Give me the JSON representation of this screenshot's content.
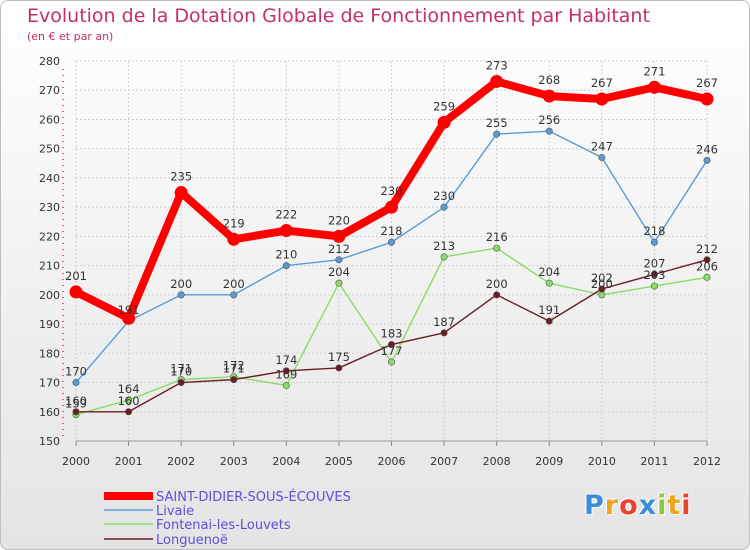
{
  "header": {
    "title": "Evolution de la Dotation Globale de Fonctionnement par Habitant",
    "subtitle": "(en € et par an)"
  },
  "logo": {
    "text": "Proxiti",
    "letters": [
      {
        "ch": "P",
        "color": "#3a8dd8"
      },
      {
        "ch": "r",
        "color": "#f2a21d"
      },
      {
        "ch": "o",
        "color": "#e8432f"
      },
      {
        "ch": "x",
        "color": "#3a8dd8"
      },
      {
        "ch": "i",
        "color": "#8dc63f"
      },
      {
        "ch": "t",
        "color": "#f2a21d"
      },
      {
        "ch": "i",
        "color": "#e8432f"
      }
    ]
  },
  "chart_data": {
    "type": "line",
    "title": "Evolution de la Dotation Globale de Fonctionnement par Habitant",
    "subtitle": "(en € et par an)",
    "x": [
      2000,
      2001,
      2002,
      2003,
      2004,
      2005,
      2006,
      2007,
      2008,
      2009,
      2010,
      2011,
      2012
    ],
    "ylim": [
      150,
      280
    ],
    "yticks": [
      150,
      160,
      170,
      180,
      190,
      200,
      210,
      220,
      230,
      240,
      250,
      260,
      270,
      280
    ],
    "grid": true,
    "legend_position": "bottom-left",
    "series": [
      {
        "name": "SAINT-DIDIER-SOUS-ÉCOUVES",
        "color": "#ff0000",
        "values": [
          201,
          192,
          235,
          219,
          222,
          220,
          230,
          259,
          273,
          268,
          267,
          271,
          267
        ]
      },
      {
        "name": "Livaie",
        "color": "#5b9bd5",
        "values": [
          170,
          191,
          200,
          200,
          210,
          212,
          218,
          230,
          255,
          256,
          247,
          218,
          246
        ]
      },
      {
        "name": "Fontenai-les-Louvets",
        "color": "#88dd66",
        "values": [
          159,
          164,
          171,
          172,
          169,
          204,
          177,
          213,
          216,
          204,
          200,
          203,
          206
        ]
      },
      {
        "name": "Longuenoë",
        "color": "#6b1c24",
        "values": [
          160,
          160,
          170,
          171,
          174,
          175,
          183,
          187,
          200,
          191,
          202,
          207,
          212
        ]
      }
    ],
    "data_labels": [
      {
        "series": 0,
        "labels": [
          "201",
          "",
          "235",
          "219",
          "222",
          "220",
          "230",
          "259",
          "273",
          "268",
          "267",
          "271",
          "267"
        ]
      },
      {
        "series": 1,
        "labels": [
          "170",
          "191",
          "200",
          "200",
          "210",
          "212",
          "218",
          "230",
          "255",
          "256",
          "247",
          "218",
          "246"
        ]
      },
      {
        "series": 2,
        "labels": [
          "159",
          "164",
          "171",
          "172",
          "169",
          "204",
          "177",
          "213",
          "216",
          "204",
          "200",
          "203",
          "206"
        ]
      },
      {
        "series": 3,
        "labels": [
          "160",
          "160",
          "170",
          "171",
          "174",
          "175",
          "183",
          "187",
          "200",
          "191",
          "202",
          "207",
          "212"
        ]
      }
    ]
  }
}
